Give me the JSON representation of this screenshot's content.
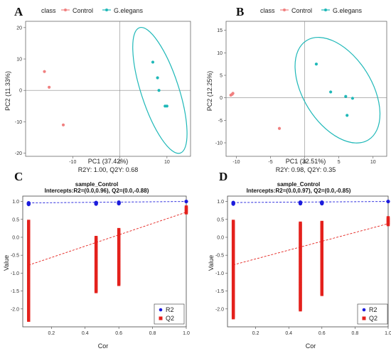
{
  "panels": [
    {
      "letter": "A",
      "legend_title": "class",
      "legend_items": [
        "Control",
        "G.elegans"
      ],
      "xlabel": "PC1 (37.42%)",
      "ylabel": "PC2 (11.33%)",
      "stats": "R2Y: 1.00, Q2Y: 0.68"
    },
    {
      "letter": "B",
      "legend_title": "class",
      "legend_items": [
        "Control",
        "G.elegans"
      ],
      "xlabel": "PC1 (32.51%)",
      "ylabel": "PC2 (12.25%)",
      "stats": "R2Y: 0.98, Q2Y: 0.35"
    },
    {
      "letter": "C",
      "title": "sample_Control",
      "subtitle": "Intercepts:R2=(0.0,0.96), Q2=(0.0,-0.88)",
      "xlabel": "Cor",
      "ylabel": "Value",
      "legend_items": [
        "R2",
        "Q2"
      ]
    },
    {
      "letter": "D",
      "title": "sample_Control",
      "subtitle": "Intercepts:R2=(0.0,0.97), Q2=(0.0,-0.85)",
      "xlabel": "Cor",
      "ylabel": "Value",
      "legend_items": [
        "R2",
        "Q2"
      ]
    }
  ],
  "colors": {
    "control": "#f08080",
    "gelegans": "#1fb8b8",
    "r2": "#1c1cdc",
    "q2": "#e4211c"
  },
  "chart_data": [
    {
      "type": "scatter",
      "panel": "A",
      "xlim": [
        -20,
        15
      ],
      "ylim": [
        -21,
        22
      ],
      "xticks": [
        -10,
        0,
        10
      ],
      "yticks": [
        -20,
        -10,
        0,
        10,
        20
      ],
      "series": [
        {
          "name": "Control",
          "x": [
            -16,
            -15,
            -12
          ],
          "y": [
            6,
            1,
            -11
          ]
        },
        {
          "name": "G.elegans",
          "x": [
            7,
            8,
            8.3,
            9.6,
            10
          ],
          "y": [
            9,
            4,
            0,
            -5,
            -5
          ]
        }
      ],
      "ellipse": {
        "cx": 8.5,
        "cy": 0,
        "rx": 4,
        "ry": 21,
        "angle_deg": -18
      }
    },
    {
      "type": "scatter",
      "panel": "B",
      "xlim": [
        -11.5,
        12
      ],
      "ylim": [
        -13,
        17
      ],
      "xticks": [
        -10,
        -5,
        0,
        5,
        10
      ],
      "yticks": [
        -10,
        -5,
        0,
        5,
        10,
        15
      ],
      "series": [
        {
          "name": "Control",
          "x": [
            -10.8,
            -10.6,
            -10.5,
            -3.7
          ],
          "y": [
            0.6,
            0.8,
            1.0,
            -6.8
          ]
        },
        {
          "name": "G.elegans",
          "x": [
            1.7,
            3.8,
            6.0,
            6.2,
            7.0
          ],
          "y": [
            7.5,
            1.3,
            0.3,
            -3.9,
            -0.1
          ]
        }
      ],
      "ellipse": {
        "cx": 4.8,
        "cy": 1.7,
        "rx": 5,
        "ry": 13,
        "angle_deg": -32
      }
    },
    {
      "type": "scatter",
      "panel": "C",
      "xlim": [
        0.03,
        1.0
      ],
      "ylim": [
        -2.5,
        1.15
      ],
      "xticks": [
        0.2,
        0.4,
        0.6,
        0.8,
        1.0
      ],
      "yticks": [
        -2.0,
        -1.5,
        -1.0,
        -0.5,
        0.0,
        0.5,
        1.0
      ],
      "r2": {
        "x": [
          0.065,
          0.465,
          0.6,
          1.0
        ],
        "y": [
          0.96,
          0.97,
          0.98,
          1.0
        ],
        "intercept": 0.96
      },
      "q2_groups": [
        {
          "x": 0.065,
          "min": -2.32,
          "max": 0.45
        },
        {
          "x": 0.465,
          "min": -1.52,
          "max": 0.0
        },
        {
          "x": 0.6,
          "min": -1.32,
          "max": 0.22
        },
        {
          "x": 1.0,
          "min": 0.68,
          "max": 0.85
        }
      ],
      "q2_fit": {
        "intercept": -0.88,
        "x1": 1.0,
        "y1": 0.7
      }
    },
    {
      "type": "scatter",
      "panel": "D",
      "xlim": [
        0.03,
        1.0
      ],
      "ylim": [
        -2.5,
        1.15
      ],
      "xticks": [
        0.2,
        0.4,
        0.6,
        0.8,
        1.0
      ],
      "yticks": [
        -2.0,
        -1.5,
        -1.0,
        -0.5,
        0.0,
        0.5,
        1.0
      ],
      "r2": {
        "x": [
          0.065,
          0.47,
          0.6,
          1.0
        ],
        "y": [
          0.97,
          0.98,
          0.98,
          1.0
        ],
        "intercept": 0.97
      },
      "q2_groups": [
        {
          "x": 0.065,
          "min": -2.25,
          "max": 0.45
        },
        {
          "x": 0.47,
          "min": -2.03,
          "max": 0.4
        },
        {
          "x": 0.6,
          "min": -1.6,
          "max": 0.42
        },
        {
          "x": 1.0,
          "min": 0.35,
          "max": 0.55
        }
      ],
      "q2_fit": {
        "intercept": -0.85,
        "x1": 1.0,
        "y1": 0.38
      }
    }
  ]
}
